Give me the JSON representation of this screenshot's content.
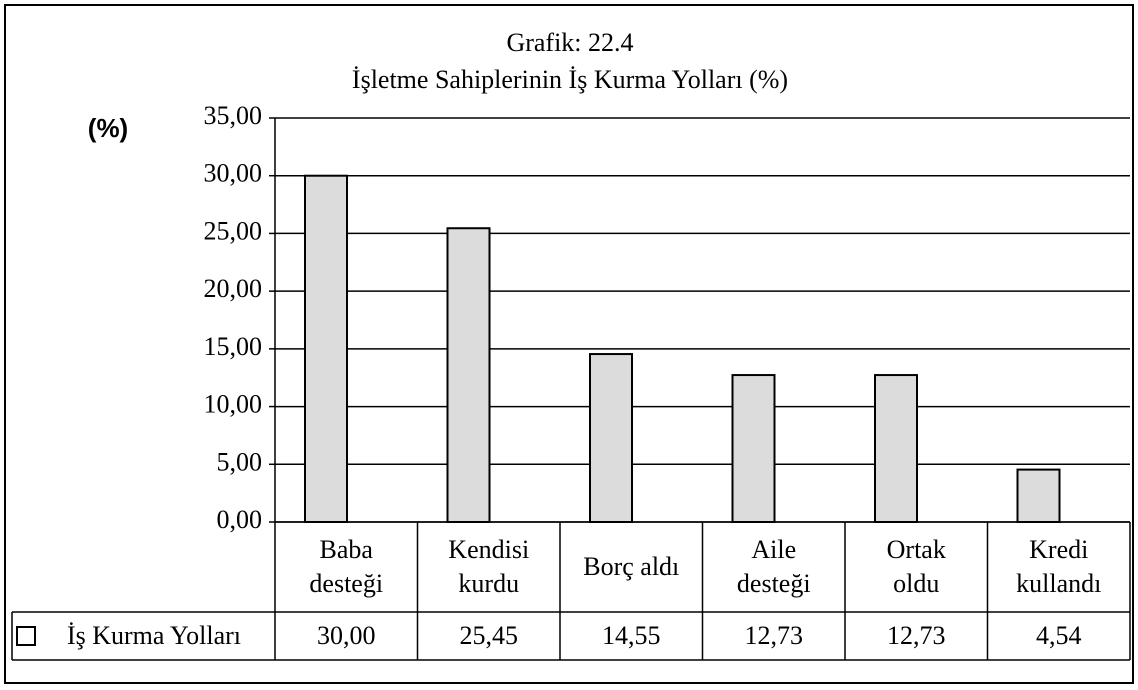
{
  "chart_data": {
    "type": "bar",
    "title": "Grafik: 22.4",
    "subtitle": "İşletme Sahiplerinin İş Kurma Yolları (%)",
    "y_label": "(%)",
    "categories": [
      "Baba desteği",
      "Kendisi kurdu",
      "Borç aldı",
      "Aile desteği",
      "Ortak oldu",
      "Kredi kullandı"
    ],
    "series": [
      {
        "name": "İş Kurma Yolları",
        "color": "#dcdcdc",
        "values": [
          30.0,
          25.45,
          14.55,
          12.73,
          12.73,
          4.54
        ],
        "value_labels": [
          "30,00",
          "25,45",
          "14,55",
          "12,73",
          "12,73",
          "4,54"
        ]
      }
    ],
    "ylim": [
      0,
      35
    ],
    "yticks": [
      {
        "value": 0,
        "label": "0,00"
      },
      {
        "value": 5,
        "label": "5,00"
      },
      {
        "value": 10,
        "label": "10,00"
      },
      {
        "value": 15,
        "label": "15,00"
      },
      {
        "value": 20,
        "label": "20,00"
      },
      {
        "value": 25,
        "label": "25,00"
      },
      {
        "value": 30,
        "label": "30,00"
      },
      {
        "value": 35,
        "label": "35,00"
      }
    ],
    "grid": true
  }
}
